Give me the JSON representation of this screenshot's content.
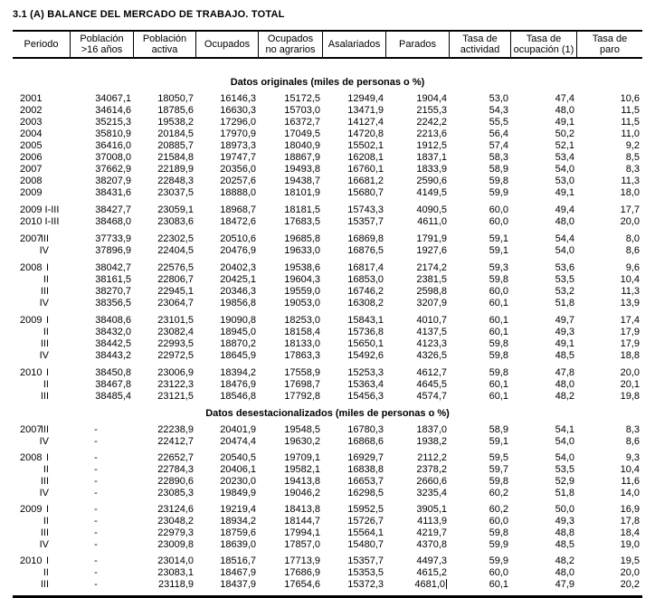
{
  "title": "3.1 (A) BALANCE DEL MERCADO DE TRABAJO. TOTAL",
  "columns": [
    {
      "l1": "Periodo",
      "l2": ""
    },
    {
      "l1": "Población",
      "l2": ">16 años"
    },
    {
      "l1": "Población",
      "l2": "activa"
    },
    {
      "l1": "Ocupados",
      "l2": ""
    },
    {
      "l1": "Ocupados",
      "l2": "no agrarios"
    },
    {
      "l1": "Asalariados",
      "l2": ""
    },
    {
      "l1": "Parados",
      "l2": ""
    },
    {
      "l1": "Tasa de",
      "l2": "actividad"
    },
    {
      "l1": "Tasa de",
      "l2": "ocupación (1)"
    },
    {
      "l1": "Tasa de",
      "l2": "paro"
    }
  ],
  "sections": [
    {
      "heading": "Datos originales (miles de personas o %)",
      "groups": [
        {
          "rows": [
            {
              "y": "2001",
              "q": "",
              "v": [
                "34067,1",
                "18050,7",
                "16146,3",
                "15172,5",
                "12949,4",
                "1904,4",
                "53,0",
                "47,4",
                "10,6"
              ]
            },
            {
              "y": "2002",
              "q": "",
              "v": [
                "34614,6",
                "18785,6",
                "16630,3",
                "15703,0",
                "13471,9",
                "2155,3",
                "54,3",
                "48,0",
                "11,5"
              ]
            },
            {
              "y": "2003",
              "q": "",
              "v": [
                "35215,3",
                "19538,2",
                "17296,0",
                "16372,7",
                "14127,4",
                "2242,2",
                "55,5",
                "49,1",
                "11,5"
              ]
            },
            {
              "y": "2004",
              "q": "",
              "v": [
                "35810,9",
                "20184,5",
                "17970,9",
                "17049,5",
                "14720,8",
                "2213,6",
                "56,4",
                "50,2",
                "11,0"
              ]
            },
            {
              "y": "2005",
              "q": "",
              "v": [
                "36416,0",
                "20885,7",
                "18973,3",
                "18040,9",
                "15502,1",
                "1912,5",
                "57,4",
                "52,1",
                "9,2"
              ]
            },
            {
              "y": "2006",
              "q": "",
              "v": [
                "37008,0",
                "21584,8",
                "19747,7",
                "18867,9",
                "16208,1",
                "1837,1",
                "58,3",
                "53,4",
                "8,5"
              ]
            },
            {
              "y": "2007",
              "q": "",
              "v": [
                "37662,9",
                "22189,9",
                "20356,0",
                "19493,8",
                "16760,1",
                "1833,9",
                "58,9",
                "54,0",
                "8,3"
              ]
            },
            {
              "y": "2008",
              "q": "",
              "v": [
                "38207,9",
                "22848,3",
                "20257,6",
                "19438,7",
                "16681,2",
                "2590,6",
                "59,8",
                "53,0",
                "11,3"
              ]
            },
            {
              "y": "2009",
              "q": "",
              "v": [
                "38431,6",
                "23037,5",
                "18888,0",
                "18101,9",
                "15680,7",
                "4149,5",
                "59,9",
                "49,1",
                "18,0"
              ]
            }
          ]
        },
        {
          "rows": [
            {
              "y": "2009 I-III",
              "q": "",
              "v": [
                "38427,7",
                "23059,1",
                "18968,7",
                "18181,5",
                "15743,3",
                "4090,5",
                "60,0",
                "49,4",
                "17,7"
              ]
            },
            {
              "y": "2010 I-III",
              "q": "",
              "v": [
                "38468,0",
                "23083,6",
                "18472,6",
                "17683,5",
                "15357,7",
                "4611,0",
                "60,0",
                "48,0",
                "20,0"
              ]
            }
          ]
        },
        {
          "rows": [
            {
              "y": "2007",
              "q": "III",
              "v": [
                "37733,9",
                "22302,5",
                "20510,6",
                "19685,8",
                "16869,8",
                "1791,9",
                "59,1",
                "54,4",
                "8,0"
              ]
            },
            {
              "y": "",
              "q": "IV",
              "v": [
                "37896,9",
                "22404,5",
                "20476,9",
                "19633,0",
                "16876,5",
                "1927,6",
                "59,1",
                "54,0",
                "8,6"
              ]
            }
          ]
        },
        {
          "rows": [
            {
              "y": "2008",
              "q": "I",
              "v": [
                "38042,7",
                "22576,5",
                "20402,3",
                "19538,6",
                "16817,4",
                "2174,2",
                "59,3",
                "53,6",
                "9,6"
              ]
            },
            {
              "y": "",
              "q": "II",
              "v": [
                "38161,5",
                "22806,7",
                "20425,1",
                "19604,3",
                "16853,0",
                "2381,5",
                "59,8",
                "53,5",
                "10,4"
              ]
            },
            {
              "y": "",
              "q": "III",
              "v": [
                "38270,7",
                "22945,1",
                "20346,3",
                "19559,0",
                "16746,2",
                "2598,8",
                "60,0",
                "53,2",
                "11,3"
              ]
            },
            {
              "y": "",
              "q": "IV",
              "v": [
                "38356,5",
                "23064,7",
                "19856,8",
                "19053,0",
                "16308,2",
                "3207,9",
                "60,1",
                "51,8",
                "13,9"
              ]
            }
          ]
        },
        {
          "rows": [
            {
              "y": "2009",
              "q": "I",
              "v": [
                "38408,6",
                "23101,5",
                "19090,8",
                "18253,0",
                "15843,1",
                "4010,7",
                "60,1",
                "49,7",
                "17,4"
              ]
            },
            {
              "y": "",
              "q": "II",
              "v": [
                "38432,0",
                "23082,4",
                "18945,0",
                "18158,4",
                "15736,8",
                "4137,5",
                "60,1",
                "49,3",
                "17,9"
              ]
            },
            {
              "y": "",
              "q": "III",
              "v": [
                "38442,5",
                "22993,5",
                "18870,2",
                "18133,0",
                "15650,1",
                "4123,3",
                "59,8",
                "49,1",
                "17,9"
              ]
            },
            {
              "y": "",
              "q": "IV",
              "v": [
                "38443,2",
                "22972,5",
                "18645,9",
                "17863,3",
                "15492,6",
                "4326,5",
                "59,8",
                "48,5",
                "18,8"
              ]
            }
          ]
        },
        {
          "rows": [
            {
              "y": "2010",
              "q": "I",
              "v": [
                "38450,8",
                "23006,9",
                "18394,2",
                "17558,9",
                "15253,3",
                "4612,7",
                "59,8",
                "47,8",
                "20,0"
              ]
            },
            {
              "y": "",
              "q": "II",
              "v": [
                "38467,8",
                "23122,3",
                "18476,9",
                "17698,7",
                "15363,4",
                "4645,5",
                "60,1",
                "48,0",
                "20,1"
              ]
            },
            {
              "y": "",
              "q": "III",
              "v": [
                "38485,4",
                "23121,5",
                "18546,8",
                "17792,8",
                "15456,3",
                "4574,7",
                "60,1",
                "48,2",
                "19,8"
              ]
            }
          ]
        }
      ]
    },
    {
      "heading": "Datos desestacionalizados (miles de personas o %)",
      "groups": [
        {
          "rows": [
            {
              "y": "2007",
              "q": "III",
              "v": [
                "-",
                "22238,9",
                "20401,9",
                "19548,5",
                "16780,3",
                "1837,0",
                "58,9",
                "54,1",
                "8,3"
              ]
            },
            {
              "y": "",
              "q": "IV",
              "v": [
                "-",
                "22412,7",
                "20474,4",
                "19630,2",
                "16868,6",
                "1938,2",
                "59,1",
                "54,0",
                "8,6"
              ]
            }
          ]
        },
        {
          "rows": [
            {
              "y": "2008",
              "q": "I",
              "v": [
                "-",
                "22652,7",
                "20540,5",
                "19709,1",
                "16929,7",
                "2112,2",
                "59,5",
                "54,0",
                "9,3"
              ]
            },
            {
              "y": "",
              "q": "II",
              "v": [
                "-",
                "22784,3",
                "20406,1",
                "19582,1",
                "16838,8",
                "2378,2",
                "59,7",
                "53,5",
                "10,4"
              ]
            },
            {
              "y": "",
              "q": "III",
              "v": [
                "-",
                "22890,6",
                "20230,0",
                "19413,8",
                "16653,7",
                "2660,6",
                "59,8",
                "52,9",
                "11,6"
              ]
            },
            {
              "y": "",
              "q": "IV",
              "v": [
                "-",
                "23085,3",
                "19849,9",
                "19046,2",
                "16298,5",
                "3235,4",
                "60,2",
                "51,8",
                "14,0"
              ]
            }
          ]
        },
        {
          "rows": [
            {
              "y": "2009",
              "q": "I",
              "v": [
                "-",
                "23124,6",
                "19219,4",
                "18413,8",
                "15952,5",
                "3905,1",
                "60,2",
                "50,0",
                "16,9"
              ]
            },
            {
              "y": "",
              "q": "II",
              "v": [
                "-",
                "23048,2",
                "18934,2",
                "18144,7",
                "15726,7",
                "4113,9",
                "60,0",
                "49,3",
                "17,8"
              ]
            },
            {
              "y": "",
              "q": "III",
              "v": [
                "-",
                "22979,3",
                "18759,6",
                "17994,1",
                "15564,1",
                "4219,7",
                "59,8",
                "48,8",
                "18,4"
              ]
            },
            {
              "y": "",
              "q": "IV",
              "v": [
                "-",
                "23009,8",
                "18639,0",
                "17857,0",
                "15480,7",
                "4370,8",
                "59,9",
                "48,5",
                "19,0"
              ]
            }
          ]
        },
        {
          "rows": [
            {
              "y": "2010",
              "q": "I",
              "v": [
                "-",
                "23014,0",
                "18516,7",
                "17713,9",
                "15357,7",
                "4497,3",
                "59,9",
                "48,2",
                "19,5"
              ]
            },
            {
              "y": "",
              "q": "II",
              "v": [
                "-",
                "23083,1",
                "18467,9",
                "17686,9",
                "15353,5",
                "4615,2",
                "60,0",
                "48,0",
                "20,0"
              ]
            },
            {
              "y": "",
              "q": "III",
              "v": [
                "-",
                "23118,9",
                "18437,9",
                "17654,6",
                "15372,3",
                "4681,0",
                "60,1",
                "47,9",
                "20,2"
              ],
              "caret": 5
            }
          ]
        }
      ]
    }
  ]
}
